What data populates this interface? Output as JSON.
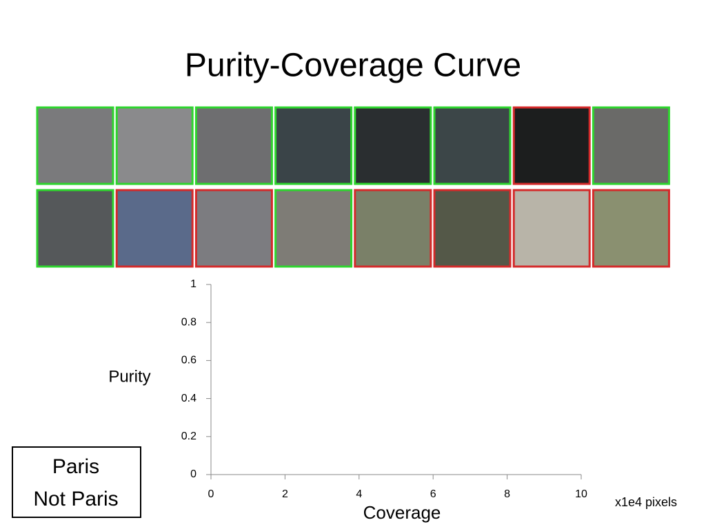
{
  "title": "Purity-Coverage Curve",
  "thumbnails": {
    "colors": [
      "#2ed52e",
      "#2ed52e",
      "#2ed52e",
      "#2ed52e",
      "#2ed52e",
      "#2ed52e",
      "#d42a2a",
      "#2ed52e",
      "#2ed52e",
      "#d42a2a",
      "#d42a2a",
      "#2ed52e",
      "#d42a2a",
      "#d42a2a",
      "#d42a2a",
      "#d42a2a"
    ]
  },
  "legend": [
    {
      "name": "Paris",
      "color": "#22dd22"
    },
    {
      "name": "Not Paris",
      "color": "#ee1c1c"
    }
  ],
  "chart_data": {
    "type": "line",
    "xlabel": "Coverage",
    "ylabel": "Purity",
    "x_unit_note": "x1e4 pixels",
    "xlim": [
      0,
      10
    ],
    "xticks": [
      0,
      2,
      4,
      6,
      8,
      10
    ],
    "ylim": [
      0,
      1
    ],
    "yticks": [
      0,
      0.2,
      0.4,
      0.6,
      0.8,
      1
    ],
    "series": []
  }
}
